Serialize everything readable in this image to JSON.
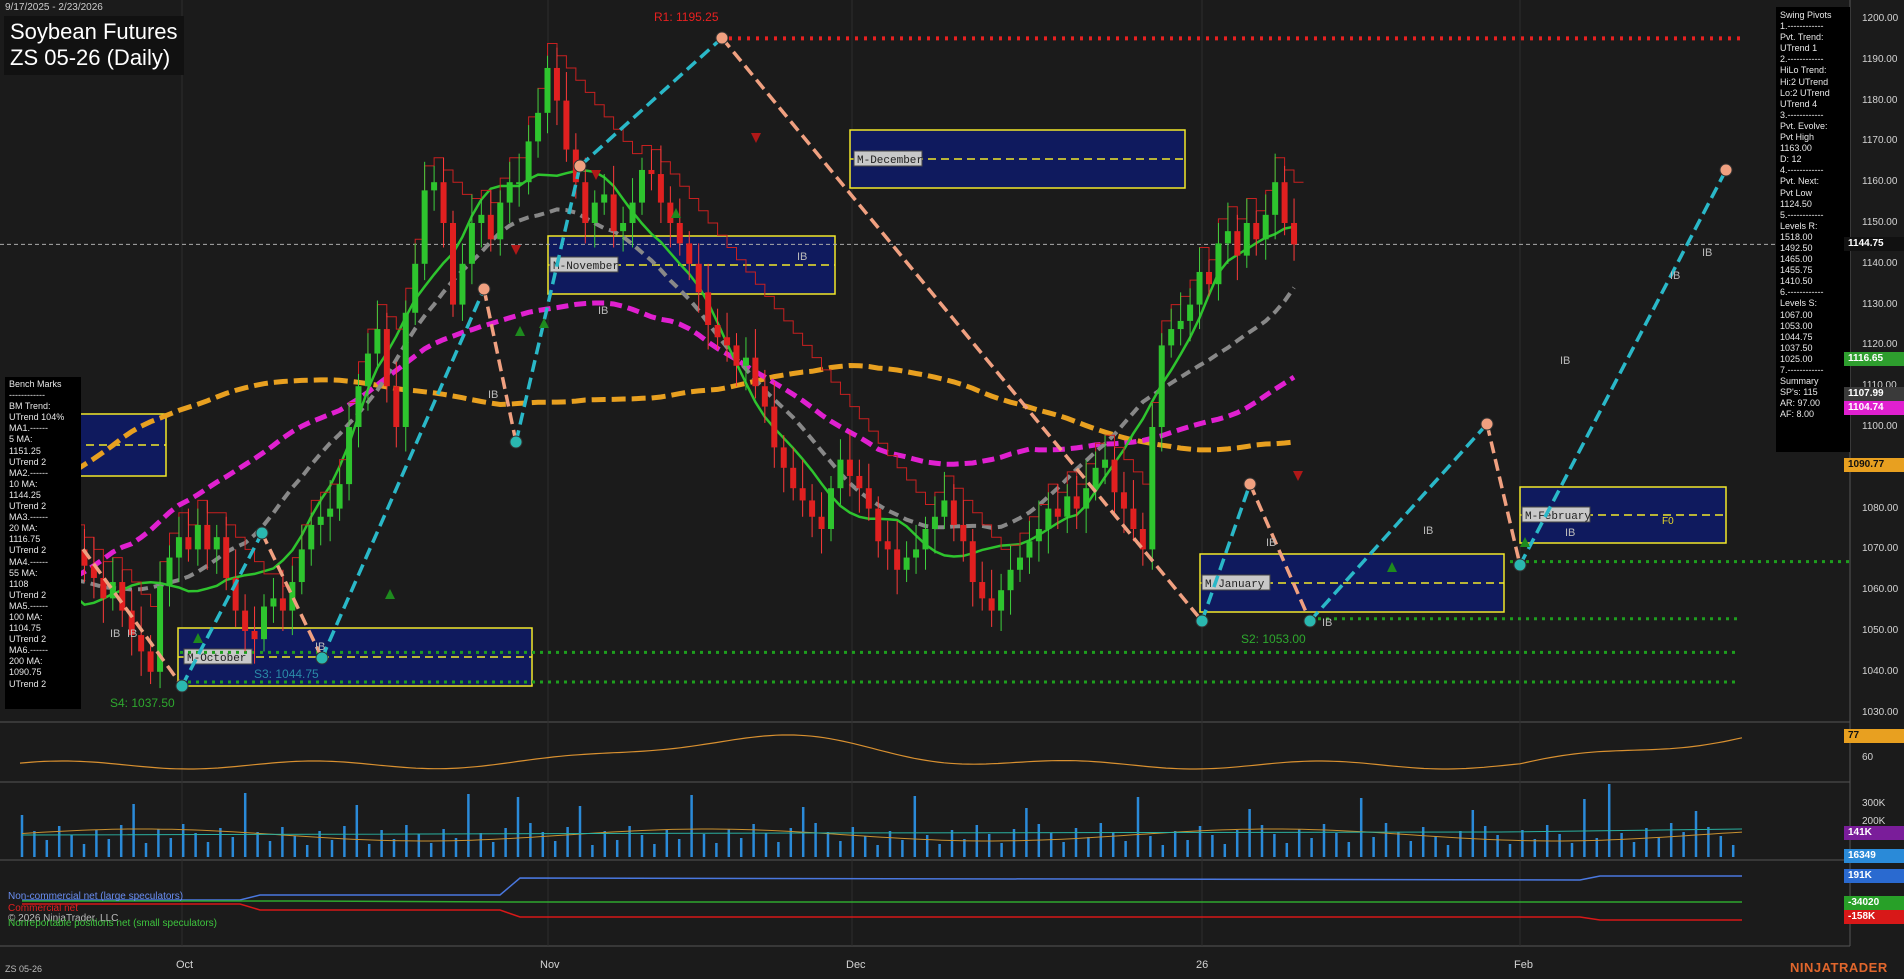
{
  "header": {
    "date_range": "9/17/2025 - 2/23/2026",
    "title_line1": "Soybean Futures",
    "title_line2": "ZS 05-26 (Daily)"
  },
  "pivots_panel": {
    "lines": [
      "Swing Pivots",
      "1.------------",
      "Pvt. Trend:",
      "UTrend 1",
      "2.------------",
      "HiLo Trend:",
      "Hi:2 UTrend",
      "Lo:2 UTrend",
      "UTrend 4",
      "3.------------",
      "Pvt. Evolve:",
      "Pvt High",
      "1163.00",
      "D: 12",
      "4.------------",
      "Pvt. Next:",
      "Pvt Low",
      "1124.50",
      "5.------------",
      "Levels R:",
      "1518.00",
      "1492.50",
      "1465.00",
      "1455.75",
      "1410.50",
      "6.------------",
      "Levels S:",
      "1067.00",
      "1053.00",
      "1044.75",
      "1037.50",
      "1025.00",
      "7.------------",
      "Summary",
      "SP's: 115",
      "AR: 97.00",
      "AF: 8.00"
    ]
  },
  "bench_panel": {
    "lines": [
      "Bench Marks",
      "------------",
      "BM Trend:",
      "UTrend 104%",
      "MA1.------",
      "5 MA:",
      "1151.25",
      "UTrend 2",
      "MA2.------",
      "10 MA:",
      "1144.25",
      "UTrend 2",
      "MA3.------",
      "20 MA:",
      "1116.75",
      "UTrend 2",
      "MA4.------",
      "55 MA:",
      "1108",
      "UTrend 2",
      "MA5.------",
      "100 MA:",
      "1104.75",
      "UTrend 2",
      "MA6.------",
      "200 MA:",
      "1090.75",
      "UTrend 2"
    ]
  },
  "price_axis": {
    "labels": [
      "1200.00",
      "1190.00",
      "1180.00",
      "1170.00",
      "1160.00",
      "1150.00",
      "1140.00",
      "1130.00",
      "1120.00",
      "1110.00",
      "1100.00",
      "1090.00",
      "1080.00",
      "1070.00",
      "1060.00",
      "1050.00",
      "1040.00",
      "1030.00"
    ],
    "badges": [
      {
        "value": "1144.75",
        "bg": "#111111",
        "fg": "#ffffff",
        "price": 1144.75
      },
      {
        "value": "1116.65",
        "bg": "#2e9e2e",
        "fg": "#ffffff",
        "price": 1116.65
      },
      {
        "value": "1107.99",
        "bg": "#3a3a3a",
        "fg": "#ffffff",
        "price": 1107.99
      },
      {
        "value": "1104.74",
        "bg": "#e020d0",
        "fg": "#ffffff",
        "price": 1104.74
      },
      {
        "value": "1090.77",
        "bg": "#e8a020",
        "fg": "#111111",
        "price": 1090.77
      }
    ]
  },
  "panel_axes": {
    "osc_labels": [
      "60"
    ],
    "osc_badge": "77",
    "volume_labels": [
      "300K",
      "200K"
    ],
    "volume_badges": [
      {
        "value": "141K",
        "bg": "#7a1d9a",
        "fg": "#ffffff"
      },
      {
        "value": "16349",
        "bg": "#2a8ad8",
        "fg": "#ffffff"
      }
    ],
    "cot_badges": [
      {
        "value": "191K",
        "bg": "#2a6ad0",
        "fg": "#ffffff"
      },
      {
        "value": "-34020",
        "bg": "#28a028",
        "fg": "#ffffff"
      },
      {
        "value": "-158K",
        "bg": "#d81818",
        "fg": "#ffffff"
      }
    ]
  },
  "x_axis": {
    "labels": [
      "Oct",
      "Nov",
      "Dec",
      "26",
      "Feb"
    ]
  },
  "annotations": {
    "r1": "R1: 1195.25",
    "s2": "S2: 1053.00",
    "s3": "S3: 1044.75",
    "s4": "S4: 1037.50",
    "months": [
      "M-October",
      "M-November",
      "M-December",
      "M-January",
      "M-February"
    ],
    "ib": "IB",
    "f0": "F0"
  },
  "cot_legend": {
    "noncommercial": "Non-commercial net (large speculators)",
    "commercial": "Commercial net",
    "nonreportable": "Nonreportable positions net (small speculators)",
    "copyright": "© 2026 NinjaTrader, LLC"
  },
  "footer": {
    "symbol": "ZS 05-26",
    "watermark": "NINJATRADER"
  },
  "chart_data": {
    "type": "line",
    "title": "Soybean Futures ZS 05-26 (Daily)",
    "ylim": [
      1027,
      1205
    ],
    "close_approx": [
      1070,
      1066,
      1063,
      1058,
      1062,
      1055,
      1049,
      1045,
      1040,
      1061,
      1068,
      1073,
      1070,
      1076,
      1070,
      1073,
      1063,
      1055,
      1050,
      1048,
      1056,
      1058,
      1055,
      1062,
      1070,
      1076,
      1078,
      1080,
      1086,
      1100,
      1110,
      1118,
      1124,
      1110,
      1100,
      1128,
      1140,
      1158,
      1160,
      1150,
      1130,
      1140,
      1150,
      1152,
      1146,
      1155,
      1160,
      1160,
      1170,
      1177,
      1188,
      1180,
      1168,
      1160,
      1150,
      1155,
      1157,
      1148,
      1150,
      1155,
      1163,
      1162,
      1155,
      1150,
      1145,
      1140,
      1133,
      1125,
      1122,
      1120,
      1115,
      1117,
      1110,
      1105,
      1095,
      1090,
      1085,
      1082,
      1078,
      1075,
      1085,
      1092,
      1088,
      1085,
      1080,
      1072,
      1070,
      1065,
      1068,
      1070,
      1075,
      1078,
      1082,
      1076,
      1072,
      1062,
      1058,
      1055,
      1060,
      1065,
      1068,
      1072,
      1075,
      1080,
      1078,
      1083,
      1080,
      1085,
      1090,
      1092,
      1084,
      1080,
      1075,
      1070,
      1100,
      1120,
      1124,
      1126,
      1130,
      1138,
      1135,
      1145,
      1148,
      1142,
      1150,
      1146,
      1152,
      1160,
      1150,
      1144.75
    ],
    "moving_averages": [
      {
        "name": "20 MA",
        "value": 1116.75,
        "color": "#2ec42e"
      },
      {
        "name": "55 MA",
        "value": 1108,
        "color": "#888888"
      },
      {
        "name": "100 MA",
        "value": 1104.75,
        "color": "#e020d0"
      },
      {
        "name": "200 MA",
        "value": 1090.75,
        "color": "#e8a020"
      }
    ],
    "support_levels": [
      1067.0,
      1053.0,
      1044.75,
      1037.5
    ],
    "resistance_levels": [
      1195.25
    ]
  }
}
